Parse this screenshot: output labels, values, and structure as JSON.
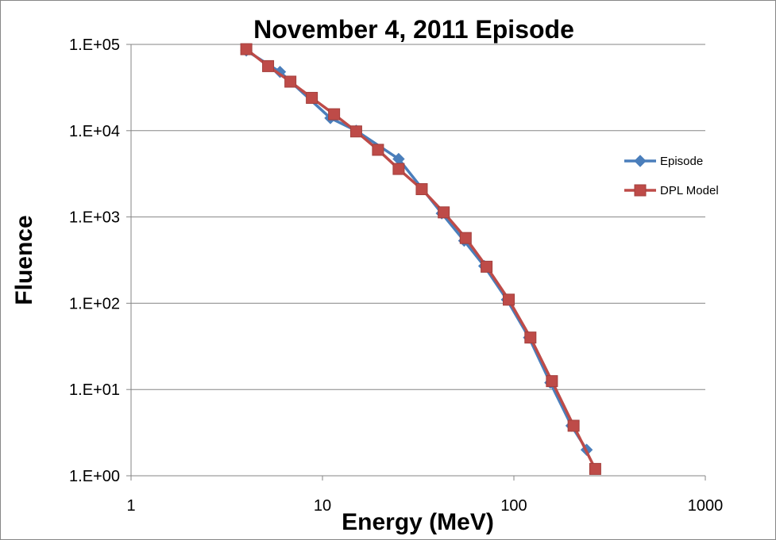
{
  "chart_data": {
    "type": "line",
    "title": "November 4, 2011 Episode",
    "xlabel": "Energy (MeV)",
    "ylabel": "Fluence",
    "x_scale": "log",
    "y_scale": "log",
    "xlim": [
      1,
      1000
    ],
    "ylim": [
      1,
      100000
    ],
    "x_ticks": [
      "1",
      "10",
      "100",
      "1000"
    ],
    "y_ticks": [
      "1.E+00",
      "1.E+01",
      "1.E+02",
      "1.E+03",
      "1.E+04",
      "1.E+05"
    ],
    "grid": "horizontal major",
    "legend_position": "right",
    "series": [
      {
        "name": "Episode",
        "color": "#4a7ebb",
        "marker": "diamond",
        "x": [
          4,
          6,
          11,
          15,
          25,
          42,
          55,
          70,
          92,
          120,
          155,
          200,
          240
        ],
        "y": [
          85000,
          48000,
          14000,
          10000,
          4700,
          1100,
          530,
          270,
          110,
          40,
          12,
          3.8,
          2.0
        ]
      },
      {
        "name": "DPL Model",
        "color": "#be4b48",
        "marker": "square",
        "x": [
          4,
          5.2,
          6.8,
          8.8,
          11.5,
          15,
          19.5,
          25,
          33,
          43,
          56,
          72,
          94,
          122,
          158,
          205,
          266
        ],
        "y": [
          88000,
          56000,
          37000,
          24000,
          15500,
          9800,
          6000,
          3600,
          2100,
          1130,
          570,
          265,
          110,
          40,
          12.5,
          3.8,
          1.2
        ]
      }
    ]
  }
}
